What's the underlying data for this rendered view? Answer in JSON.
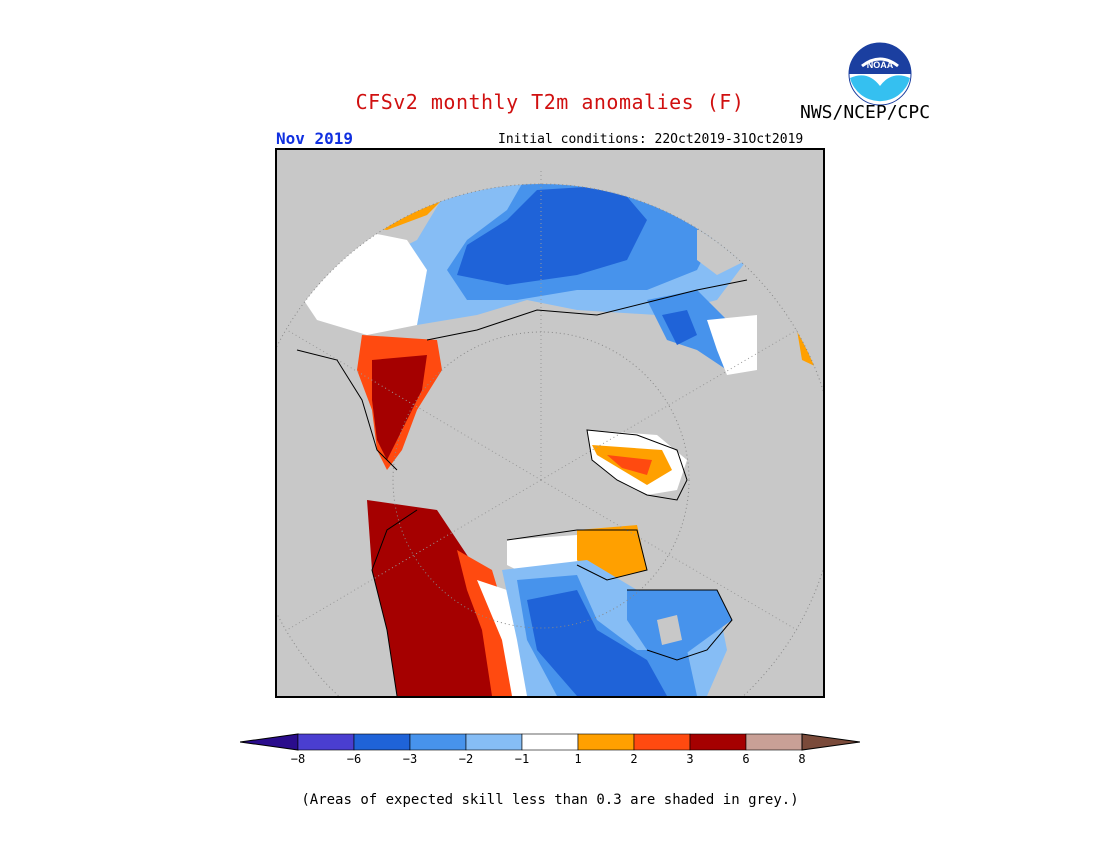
{
  "header": {
    "title": "CFSv2 monthly T2m anomalies (F)",
    "agency": "NWS/NCEP/CPC",
    "logo_text": "NOAA",
    "month": "Nov 2019",
    "initial_conditions": "Initial conditions: 22Oct2019-31Oct2019"
  },
  "colorbar": {
    "ticks": [
      "−8",
      "−6",
      "−3",
      "−2",
      "−1",
      "1",
      "2",
      "3",
      "6",
      "8"
    ],
    "colors": {
      "below_-8": "#2a0c8c",
      "-8_-6": "#4a3ed0",
      "-6_-3": "#1f63d8",
      "-3_-2": "#4793ec",
      "-2_-1": "#86bdf5",
      "-1_1": "#ffffff",
      "1_2": "#ffa000",
      "2_3": "#ff4a10",
      "3_6": "#a50000",
      "6_8": "#c9a096",
      "above_8": "#7a4a3a"
    }
  },
  "note": "(Areas of expected skill less than 0.3 are shaded in grey.)",
  "map": {
    "projection": "north polar stereographic",
    "skill_mask_color": "#c8c8c8"
  }
}
